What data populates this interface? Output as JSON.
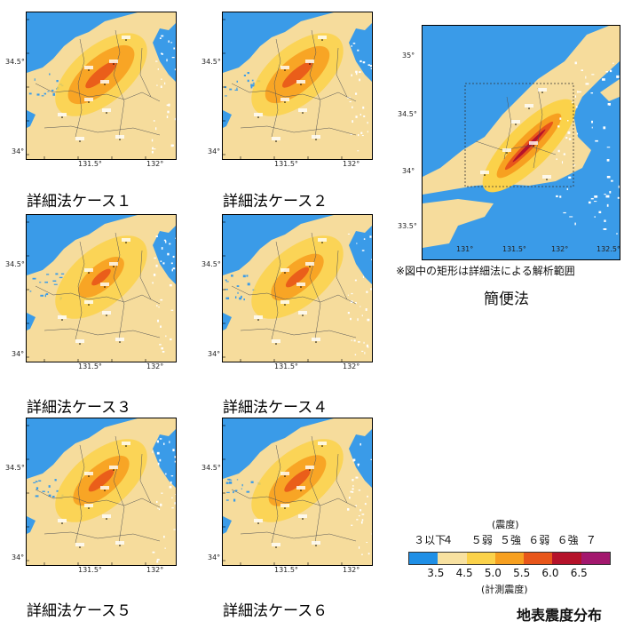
{
  "detail_panels": [
    {
      "caption": "詳細法ケース１",
      "intensity": 0.75,
      "lat_ticks": [
        "34.5°",
        "34°"
      ],
      "lon_ticks": [
        "131.5°",
        "132°"
      ]
    },
    {
      "caption": "詳細法ケース２",
      "intensity": 0.72,
      "lat_ticks": [
        "34.5°",
        "34°"
      ],
      "lon_ticks": [
        "131.5°",
        "132°"
      ]
    },
    {
      "caption": "詳細法ケース３",
      "intensity": 0.45,
      "lat_ticks": [
        "34.5°",
        "34°"
      ],
      "lon_ticks": [
        "131.5°",
        "132°"
      ]
    },
    {
      "caption": "詳細法ケース４",
      "intensity": 0.55,
      "lat_ticks": [
        "34.5°",
        "34°"
      ],
      "lon_ticks": [
        "131.5°",
        "132°"
      ]
    },
    {
      "caption": "詳細法ケース５",
      "intensity": 0.6,
      "lat_ticks": [
        "34.5°",
        "34°"
      ],
      "lon_ticks": [
        "131.5°",
        "132°"
      ]
    },
    {
      "caption": "詳細法ケース６",
      "intensity": 0.62,
      "lat_ticks": [
        "34.5°",
        "34°"
      ],
      "lon_ticks": [
        "131.5°",
        "132°"
      ]
    }
  ],
  "simple_panel": {
    "caption": "簡便法",
    "note": "※図中の矩形は詳細法による解析範囲",
    "lat_ticks": [
      "35°",
      "34.5°",
      "34°",
      "33.5°"
    ],
    "lon_ticks": [
      "131°",
      "131.5°",
      "132°",
      "132.5°"
    ]
  },
  "legend": {
    "title": "(震度)",
    "classes": [
      "３以下",
      "４",
      "５弱",
      "５強",
      "６弱",
      "６強",
      "７"
    ],
    "values": [
      "3.5",
      "4.5",
      "5.0",
      "5.5",
      "6.0",
      "6.5"
    ],
    "subtitle": "(計測震度)",
    "colors": [
      "#1f8fe6",
      "#f8e1a0",
      "#fbd24a",
      "#f7a020",
      "#e8561a",
      "#b5122a",
      "#a3186e"
    ]
  },
  "figure_title": "地表震度分布"
}
